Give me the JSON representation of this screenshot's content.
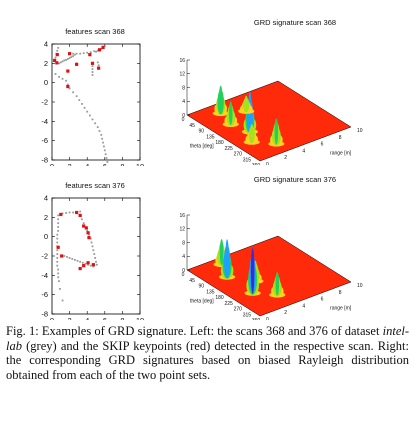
{
  "figure": {
    "panels": [
      {
        "scatter_title": "features scan 368",
        "surface_title": "GRD signature scan 368",
        "scatter_points": {
          "grey": [
            [
              2.4,
              3.0
            ],
            [
              2.8,
              3.0
            ],
            [
              3.2,
              3.0
            ],
            [
              3.6,
              3.05
            ],
            [
              4.0,
              3.1
            ],
            [
              4.4,
              3.15
            ],
            [
              4.8,
              3.25
            ],
            [
              5.0,
              3.2
            ],
            [
              5.2,
              3.3
            ],
            [
              5.4,
              3.4
            ],
            [
              5.6,
              3.5
            ],
            [
              5.8,
              3.6
            ],
            [
              6.0,
              3.8
            ],
            [
              0.6,
              2.0
            ],
            [
              0.8,
              2.0
            ],
            [
              1.0,
              2.1
            ],
            [
              1.2,
              2.2
            ],
            [
              1.4,
              2.3
            ],
            [
              1.6,
              2.35
            ],
            [
              1.8,
              2.45
            ],
            [
              2.0,
              2.55
            ],
            [
              2.2,
              2.65
            ],
            [
              2.4,
              2.75
            ],
            [
              2.6,
              2.9
            ],
            [
              4.6,
              2.0
            ],
            [
              4.6,
              1.7
            ],
            [
              4.6,
              1.4
            ],
            [
              4.6,
              1.1
            ],
            [
              4.6,
              0.8
            ],
            [
              5.2,
              2.1
            ],
            [
              5.3,
              1.8
            ],
            [
              5.3,
              1.5
            ],
            [
              0.4,
              0.9
            ],
            [
              0.8,
              0.6
            ],
            [
              1.2,
              0.4
            ],
            [
              1.6,
              0.2
            ],
            [
              1.8,
              -0.2
            ],
            [
              2.0,
              -0.6
            ],
            [
              2.4,
              -1.0
            ],
            [
              2.8,
              -1.4
            ],
            [
              3.1,
              -1.8
            ],
            [
              3.4,
              -2.2
            ],
            [
              3.7,
              -2.6
            ],
            [
              4.0,
              -3.0
            ],
            [
              4.3,
              -3.4
            ],
            [
              4.6,
              -3.8
            ],
            [
              4.9,
              -4.2
            ],
            [
              5.2,
              -4.6
            ],
            [
              5.4,
              -5.0
            ],
            [
              5.6,
              -5.4
            ],
            [
              5.7,
              -5.8
            ],
            [
              5.8,
              -6.2
            ],
            [
              5.9,
              -6.6
            ],
            [
              6.0,
              -7.0
            ],
            [
              6.1,
              -7.4
            ],
            [
              6.2,
              -7.8
            ],
            [
              6.3,
              -8.2
            ],
            [
              0.3,
              2.3
            ],
            [
              0.4,
              2.6
            ],
            [
              0.5,
              3.0
            ],
            [
              0.6,
              3.3
            ],
            [
              0.7,
              3.6
            ]
          ],
          "red": [
            [
              0.3,
              2.3
            ],
            [
              0.55,
              2.05
            ],
            [
              1.8,
              1.2
            ],
            [
              2.0,
              3.0
            ],
            [
              4.3,
              2.9
            ],
            [
              4.6,
              2.0
            ],
            [
              5.8,
              3.65
            ],
            [
              5.4,
              3.4
            ],
            [
              5.3,
              1.5
            ],
            [
              2.8,
              1.9
            ],
            [
              1.8,
              -0.4
            ],
            [
              0.6,
              2.9
            ]
          ]
        }
      },
      {
        "scatter_title": "features scan 376",
        "surface_title": "GRD signature scan 376",
        "scatter_points": {
          "grey": [
            [
              1.2,
              2.4
            ],
            [
              1.6,
              2.45
            ],
            [
              2.0,
              2.5
            ],
            [
              2.4,
              2.5
            ],
            [
              2.8,
              2.55
            ],
            [
              3.2,
              2.6
            ],
            [
              0.7,
              2.2
            ],
            [
              0.7,
              1.8
            ],
            [
              0.7,
              1.4
            ],
            [
              0.7,
              1.0
            ],
            [
              0.7,
              0.6
            ],
            [
              0.6,
              0.2
            ],
            [
              0.6,
              -0.2
            ],
            [
              0.6,
              -0.6
            ],
            [
              0.6,
              -1.0
            ],
            [
              0.6,
              -1.4
            ],
            [
              0.6,
              -1.8
            ],
            [
              0.6,
              -2.2
            ],
            [
              0.6,
              -2.6
            ],
            [
              0.6,
              -3.0
            ],
            [
              0.7,
              -3.4
            ],
            [
              0.7,
              -3.8
            ],
            [
              0.7,
              -4.2
            ],
            [
              0.8,
              -4.6
            ],
            [
              0.9,
              -5.4
            ],
            [
              1.2,
              -6.6
            ],
            [
              3.2,
              2.2
            ],
            [
              3.4,
              1.8
            ],
            [
              3.6,
              1.4
            ],
            [
              3.8,
              1.0
            ],
            [
              4.0,
              0.6
            ],
            [
              4.2,
              0.2
            ],
            [
              4.4,
              -0.2
            ],
            [
              4.5,
              -0.6
            ],
            [
              4.6,
              -1.0
            ],
            [
              4.7,
              -1.4
            ],
            [
              4.8,
              -1.8
            ],
            [
              4.9,
              -2.2
            ],
            [
              5.0,
              -2.6
            ],
            [
              5.1,
              -2.9
            ],
            [
              1.4,
              -2.0
            ],
            [
              1.7,
              -2.1
            ],
            [
              2.0,
              -2.2
            ],
            [
              2.3,
              -2.3
            ],
            [
              2.6,
              -2.4
            ],
            [
              2.9,
              -2.5
            ],
            [
              3.2,
              -2.6
            ],
            [
              3.5,
              -2.7
            ],
            [
              3.8,
              -2.8
            ],
            [
              4.1,
              -2.9
            ],
            [
              4.4,
              -3.0
            ],
            [
              4.7,
              -3.1
            ]
          ],
          "red": [
            [
              1.0,
              2.3
            ],
            [
              2.8,
              2.5
            ],
            [
              3.2,
              2.2
            ],
            [
              3.6,
              1.1
            ],
            [
              3.9,
              0.9
            ],
            [
              4.1,
              0.4
            ],
            [
              4.2,
              -0.1
            ],
            [
              0.7,
              -1.1
            ],
            [
              1.1,
              -2.0
            ],
            [
              3.6,
              -3.0
            ],
            [
              4.1,
              -2.7
            ],
            [
              4.7,
              -2.9
            ],
            [
              3.2,
              -3.3
            ]
          ]
        }
      }
    ],
    "axes": {
      "x_ticks": [
        "0",
        "2",
        "4",
        "6",
        "8",
        "10"
      ],
      "y_ticks": [
        "4",
        "2",
        "0",
        "-2",
        "-4",
        "-6",
        "-8"
      ],
      "z_ticks": [
        "16",
        "12",
        "8",
        "4",
        "0"
      ],
      "theta_ticks": [
        "0",
        "45",
        "90",
        "135",
        "180",
        "225",
        "270",
        "315",
        "360"
      ],
      "range_ticks": [
        "0",
        "2",
        "4",
        "6",
        "8",
        "10"
      ],
      "theta_label": "theta [deg]",
      "range_label": "range [m]"
    },
    "colors": {
      "grey": "#9a9a9a",
      "red": "#e01010",
      "floor": "#ff2a0a"
    }
  },
  "caption": {
    "label": "Fig. 1:",
    "text": "Examples of GRD signature. Left: the scans 368 and 376 of dataset",
    "dataset": "intel-lab",
    "text2": "(grey) and the SKIP keypoints (red) detected in the respective scan. Right: the corresponding GRD signatures based on biased Rayleigh distribution obtained from each of the two point sets."
  }
}
